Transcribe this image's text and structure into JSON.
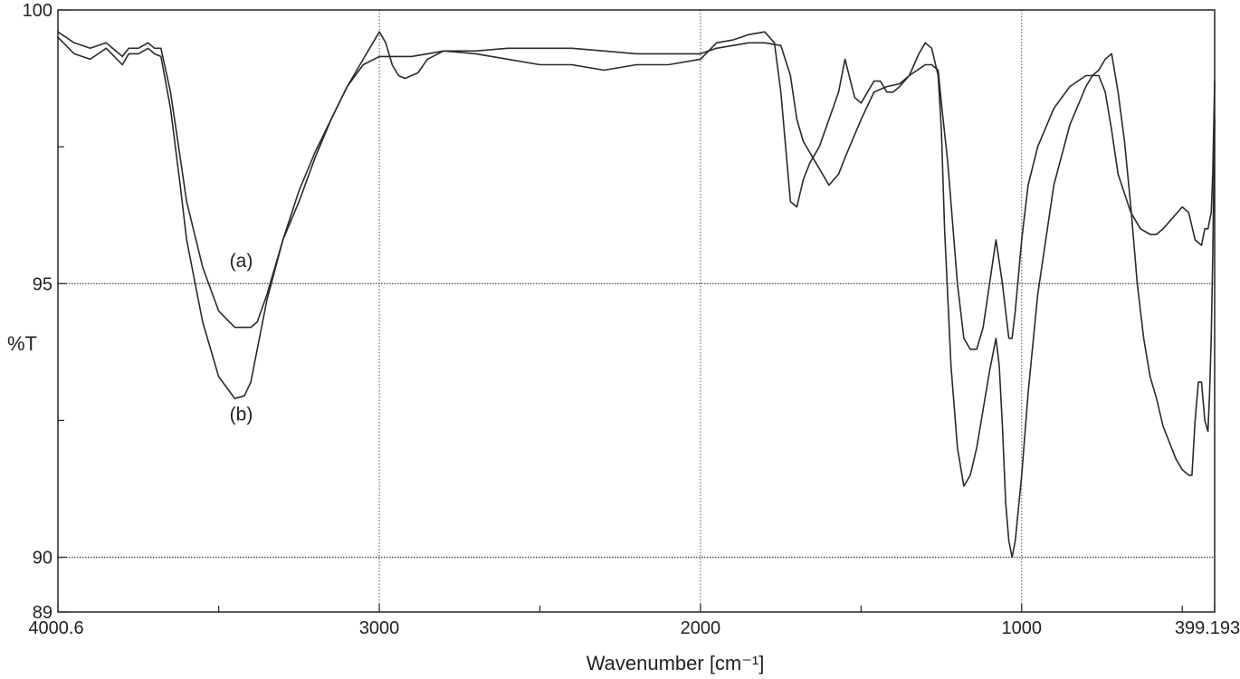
{
  "chart_data": {
    "type": "line",
    "title": "",
    "xlabel": "Wavenumber [cm⁻¹]",
    "ylabel": "%T",
    "xlim": [
      4000.6,
      399.193
    ],
    "ylim": [
      89,
      100
    ],
    "x_reversed": true,
    "grid": true,
    "x_ticks": [
      {
        "value": 4000.6,
        "label": "4000.6"
      },
      {
        "value": 3000,
        "label": "3000"
      },
      {
        "value": 2000,
        "label": "2000"
      },
      {
        "value": 1000,
        "label": "1000"
      },
      {
        "value": 399.193,
        "label": "399.193"
      }
    ],
    "x_minor_ticks": [
      3500,
      2500,
      1500,
      500
    ],
    "y_ticks": [
      {
        "value": 100,
        "label": "100"
      },
      {
        "value": 95,
        "label": "95"
      },
      {
        "value": 90,
        "label": "90"
      },
      {
        "value": 89,
        "label": "89"
      }
    ],
    "y_minor_ticks": [
      97.5,
      92.5
    ],
    "annotations": [
      {
        "text": "(a)",
        "x": 3430,
        "y": 95.3
      },
      {
        "text": "(b)",
        "x": 3430,
        "y": 92.5
      }
    ],
    "series": [
      {
        "x": [
          4000.6,
          3950,
          3900,
          3850,
          3800,
          3780,
          3750,
          3720,
          3700,
          3680,
          3650,
          3620,
          3600,
          3550,
          3500,
          3450,
          3400,
          3380,
          3350,
          3300,
          3250,
          3200,
          3150,
          3100,
          3050,
          3000,
          2950,
          2900,
          2850,
          2800,
          2700,
          2600,
          2500,
          2400,
          2300,
          2200,
          2100,
          2000,
          1950,
          1900,
          1850,
          1800,
          1750,
          1720,
          1700,
          1680,
          1650,
          1600,
          1570,
          1550,
          1500,
          1460,
          1420,
          1380,
          1350,
          1300,
          1280,
          1260,
          1250,
          1230,
          1200,
          1180,
          1160,
          1140,
          1120,
          1100,
          1080,
          1060,
          1040,
          1030,
          1020,
          1000,
          980,
          950,
          900,
          850,
          800,
          780,
          760,
          740,
          720,
          700,
          660,
          630,
          600,
          580,
          560,
          530,
          500,
          480,
          460,
          440,
          430,
          420,
          410,
          405,
          399.193
        ],
        "y": [
          99.6,
          99.4,
          99.3,
          99.4,
          99.15,
          99.3,
          99.3,
          99.4,
          99.3,
          99.3,
          98.5,
          97.3,
          96.5,
          95.3,
          94.5,
          94.2,
          94.2,
          94.3,
          94.8,
          95.8,
          96.5,
          97.3,
          98.0,
          98.6,
          99.0,
          99.15,
          99.15,
          99.15,
          99.2,
          99.25,
          99.25,
          99.3,
          99.3,
          99.3,
          99.25,
          99.2,
          99.2,
          99.2,
          99.3,
          99.35,
          99.4,
          99.4,
          99.35,
          98.8,
          98.0,
          97.6,
          97.3,
          96.8,
          97.0,
          97.3,
          98.0,
          98.5,
          98.6,
          98.65,
          98.8,
          99.0,
          99.0,
          98.9,
          98.3,
          97.2,
          95.0,
          94.0,
          93.8,
          93.8,
          94.2,
          95.0,
          95.8,
          95.0,
          94.0,
          94.0,
          94.5,
          95.8,
          96.8,
          97.5,
          98.2,
          98.6,
          98.8,
          98.8,
          98.8,
          98.5,
          97.8,
          97.0,
          96.3,
          96.0,
          95.9,
          95.9,
          96.0,
          96.2,
          96.4,
          96.3,
          95.8,
          95.7,
          96.0,
          96.0,
          96.3,
          97.0,
          98.7
        ]
      },
      {
        "x": [
          4000.6,
          3950,
          3900,
          3850,
          3800,
          3780,
          3750,
          3720,
          3700,
          3680,
          3650,
          3620,
          3600,
          3550,
          3500,
          3450,
          3420,
          3400,
          3380,
          3350,
          3300,
          3250,
          3200,
          3150,
          3100,
          3050,
          3020,
          3000,
          2980,
          2960,
          2940,
          2920,
          2900,
          2880,
          2850,
          2800,
          2700,
          2600,
          2500,
          2400,
          2300,
          2200,
          2100,
          2000,
          1950,
          1900,
          1850,
          1800,
          1770,
          1750,
          1720,
          1700,
          1680,
          1660,
          1650,
          1630,
          1600,
          1570,
          1550,
          1520,
          1500,
          1480,
          1460,
          1440,
          1420,
          1400,
          1380,
          1350,
          1320,
          1300,
          1280,
          1260,
          1250,
          1240,
          1220,
          1200,
          1180,
          1160,
          1140,
          1120,
          1100,
          1080,
          1070,
          1060,
          1050,
          1040,
          1030,
          1020,
          1000,
          980,
          950,
          900,
          850,
          800,
          780,
          760,
          740,
          720,
          700,
          680,
          660,
          640,
          620,
          600,
          580,
          560,
          540,
          520,
          500,
          480,
          470,
          460,
          450,
          440,
          430,
          420,
          415,
          410,
          405,
          399.193
        ],
        "y": [
          99.5,
          99.2,
          99.1,
          99.3,
          99.0,
          99.2,
          99.2,
          99.3,
          99.2,
          99.15,
          98.2,
          96.8,
          95.8,
          94.3,
          93.3,
          92.9,
          92.95,
          93.2,
          93.8,
          94.7,
          95.8,
          96.7,
          97.4,
          98.0,
          98.6,
          99.1,
          99.4,
          99.6,
          99.4,
          99.0,
          98.8,
          98.75,
          98.8,
          98.85,
          99.1,
          99.25,
          99.2,
          99.1,
          99.0,
          99.0,
          98.9,
          99.0,
          99.0,
          99.1,
          99.4,
          99.45,
          99.55,
          99.6,
          99.4,
          98.5,
          96.5,
          96.4,
          96.9,
          97.2,
          97.3,
          97.5,
          98.0,
          98.5,
          99.1,
          98.4,
          98.3,
          98.5,
          98.7,
          98.7,
          98.5,
          98.5,
          98.6,
          98.8,
          99.2,
          99.4,
          99.3,
          98.8,
          97.8,
          96.0,
          93.5,
          92.0,
          91.3,
          91.5,
          92.0,
          92.7,
          93.4,
          94.0,
          93.5,
          92.4,
          91.0,
          90.3,
          90.0,
          90.3,
          91.5,
          93.0,
          94.8,
          96.8,
          97.9,
          98.6,
          98.8,
          98.9,
          99.1,
          99.2,
          98.5,
          97.6,
          96.4,
          95.0,
          94.0,
          93.3,
          92.9,
          92.4,
          92.1,
          91.8,
          91.6,
          91.5,
          91.5,
          92.5,
          93.2,
          93.2,
          92.5,
          92.3,
          93.0,
          94.0,
          95.5,
          98.0
        ]
      }
    ]
  }
}
